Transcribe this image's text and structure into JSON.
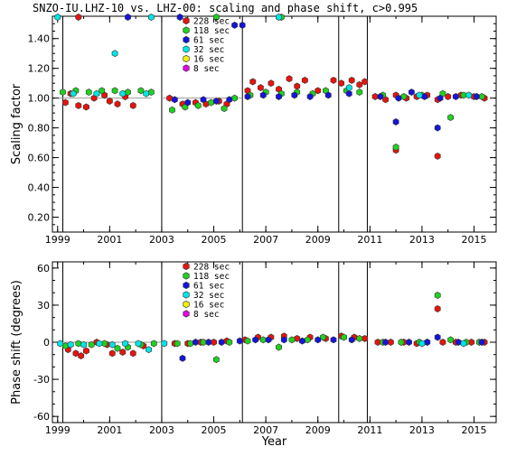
{
  "title": "SNZO-IU.LHZ-10 vs. LHZ-00: scaling and phase shift, c>0.995",
  "colors": {
    "228 sec": "#e8140c",
    "118 sec": "#1ed21e",
    "61 sec": "#1414dc",
    "32 sec": "#00e6e6",
    "16 sec": "#f0f000",
    "8 sec": "#e600e6"
  },
  "chart_data": [
    {
      "type": "scatter",
      "panel": "top",
      "xlabel": "",
      "ylabel": "Scaling factor",
      "xlim": [
        1998.8,
        2015.85
      ],
      "ylim": [
        0.1,
        1.55
      ],
      "xticks": [
        "1999",
        "2001",
        "2003",
        "2005",
        "2007",
        "2009",
        "2011",
        "2013",
        "2015"
      ],
      "yticks": [
        "0.20",
        "0.40",
        "0.60",
        "0.80",
        "1.00",
        "1.20",
        "1.40"
      ],
      "event_lines": [
        1999.2,
        2003.0,
        2006.1,
        2009.8,
        2010.9
      ],
      "legend": [
        "228 sec",
        "118 sec",
        "61 sec",
        "32 sec",
        "16 sec",
        "8 sec"
      ],
      "series": [
        {
          "name": "228 sec",
          "points": [
            [
              1999.3,
              0.97
            ],
            [
              1999.5,
              1.03
            ],
            [
              1999.8,
              0.95
            ],
            [
              2000.1,
              0.94
            ],
            [
              2000.4,
              1.0
            ],
            [
              2000.8,
              1.02
            ],
            [
              2001.0,
              0.98
            ],
            [
              2001.3,
              0.96
            ],
            [
              2001.6,
              1.01
            ],
            [
              2001.9,
              0.95
            ],
            [
              1999.8,
              1.55
            ],
            [
              2003.3,
              1.0
            ],
            [
              2003.8,
              0.96
            ],
            [
              2004.3,
              0.97
            ],
            [
              2004.7,
              0.96
            ],
            [
              2005.2,
              0.98
            ],
            [
              2005.5,
              0.96
            ],
            [
              2006.3,
              1.05
            ],
            [
              2006.5,
              1.11
            ],
            [
              2006.8,
              1.07
            ],
            [
              2007.2,
              1.1
            ],
            [
              2007.5,
              1.06
            ],
            [
              2007.9,
              1.13
            ],
            [
              2008.2,
              1.08
            ],
            [
              2008.5,
              1.12
            ],
            [
              2009.0,
              1.05
            ],
            [
              2009.6,
              1.12
            ],
            [
              2009.9,
              1.1
            ],
            [
              2010.3,
              1.12
            ],
            [
              2010.6,
              1.09
            ],
            [
              2010.8,
              1.11
            ],
            [
              2011.2,
              1.01
            ],
            [
              2011.6,
              0.99
            ],
            [
              2012.0,
              1.02
            ],
            [
              2012.4,
              1.0
            ],
            [
              2012.8,
              1.01
            ],
            [
              2013.2,
              1.02
            ],
            [
              2013.6,
              0.99
            ],
            [
              2014.0,
              1.01
            ],
            [
              2014.5,
              1.02
            ],
            [
              2015.0,
              1.01
            ],
            [
              2015.4,
              1.0
            ],
            [
              2012.0,
              0.65
            ],
            [
              2013.6,
              0.61
            ]
          ]
        },
        {
          "name": "118 sec",
          "points": [
            [
              1999.2,
              1.04
            ],
            [
              1999.7,
              1.05
            ],
            [
              2000.2,
              1.04
            ],
            [
              2000.7,
              1.05
            ],
            [
              2001.2,
              1.05
            ],
            [
              2001.7,
              1.04
            ],
            [
              2002.2,
              1.05
            ],
            [
              2002.6,
              1.04
            ],
            [
              2003.4,
              0.92
            ],
            [
              2003.9,
              0.94
            ],
            [
              2004.4,
              0.95
            ],
            [
              2004.9,
              0.97
            ],
            [
              2005.4,
              0.93
            ],
            [
              2005.8,
              1.0
            ],
            [
              2006.4,
              1.02
            ],
            [
              2007.0,
              1.04
            ],
            [
              2007.6,
              1.03
            ],
            [
              2008.2,
              1.04
            ],
            [
              2008.8,
              1.03
            ],
            [
              2009.3,
              1.05
            ],
            [
              2010.1,
              1.05
            ],
            [
              2010.6,
              1.04
            ],
            [
              2011.5,
              1.02
            ],
            [
              2012.3,
              1.01
            ],
            [
              2013.0,
              1.02
            ],
            [
              2013.8,
              1.03
            ],
            [
              2014.6,
              1.02
            ],
            [
              2015.3,
              1.01
            ],
            [
              2012.0,
              0.67
            ],
            [
              2014.1,
              0.87
            ],
            [
              2005.1,
              1.55
            ],
            [
              2007.6,
              1.55
            ]
          ]
        },
        {
          "name": "61 sec",
          "points": [
            [
              2003.5,
              0.99
            ],
            [
              2004.0,
              0.97
            ],
            [
              2004.6,
              0.99
            ],
            [
              2005.1,
              0.98
            ],
            [
              2005.6,
              0.99
            ],
            [
              2006.3,
              1.01
            ],
            [
              2006.9,
              1.02
            ],
            [
              2007.5,
              1.01
            ],
            [
              2008.1,
              1.02
            ],
            [
              2008.7,
              1.01
            ],
            [
              2009.4,
              1.02
            ],
            [
              2010.2,
              1.03
            ],
            [
              2011.4,
              1.01
            ],
            [
              2012.1,
              1.0
            ],
            [
              2012.6,
              1.04
            ],
            [
              2013.1,
              1.01
            ],
            [
              2013.7,
              1.0
            ],
            [
              2014.3,
              1.01
            ],
            [
              2015.1,
              1.01
            ],
            [
              2012.0,
              0.84
            ],
            [
              2013.6,
              0.8
            ],
            [
              2001.7,
              1.55
            ],
            [
              2003.7,
              1.55
            ],
            [
              2005.8,
              1.49
            ],
            [
              2006.1,
              1.49
            ]
          ]
        },
        {
          "name": "32 sec",
          "points": [
            [
              1999.0,
              1.55
            ],
            [
              2001.2,
              1.3
            ],
            [
              2002.6,
              1.55
            ],
            [
              2007.5,
              1.55
            ],
            [
              2010.2,
              1.07
            ],
            [
              1999.6,
              1.03
            ],
            [
              2000.5,
              1.03
            ],
            [
              2001.5,
              1.03
            ],
            [
              2002.4,
              1.03
            ],
            [
              2012.9,
              1.02
            ],
            [
              2014.8,
              1.02
            ]
          ]
        },
        {
          "name": "16 sec",
          "points": []
        },
        {
          "name": "8 sec",
          "points": []
        }
      ]
    },
    {
      "type": "scatter",
      "panel": "bottom",
      "xlabel": "Year",
      "ylabel": "Phase shift (degrees)",
      "xlim": [
        1998.8,
        2015.85
      ],
      "ylim": [
        -65,
        65
      ],
      "xticks": [
        "1999",
        "2001",
        "2003",
        "2005",
        "2007",
        "2009",
        "2011",
        "2013",
        "2015"
      ],
      "yticks": [
        "60",
        "30",
        "0",
        "-30",
        "-60"
      ],
      "event_lines": [
        1999.2,
        2003.0,
        2006.1,
        2009.8,
        2010.9
      ],
      "legend": [
        "228 sec",
        "118 sec",
        "61 sec",
        "32 sec",
        "16 sec",
        "8 sec"
      ],
      "series": [
        {
          "name": "228 sec",
          "points": [
            [
              1999.4,
              -6
            ],
            [
              1999.7,
              -9
            ],
            [
              1999.9,
              -11
            ],
            [
              2000.1,
              -7
            ],
            [
              2000.5,
              0
            ],
            [
              2000.9,
              -2
            ],
            [
              2001.1,
              -9
            ],
            [
              2001.5,
              -8
            ],
            [
              2001.9,
              -9
            ],
            [
              2002.3,
              -3
            ],
            [
              2003.5,
              -1
            ],
            [
              2004.0,
              -1
            ],
            [
              2004.5,
              0
            ],
            [
              2005.0,
              0
            ],
            [
              2005.5,
              1
            ],
            [
              2006.2,
              2
            ],
            [
              2006.7,
              4
            ],
            [
              2007.2,
              4
            ],
            [
              2007.7,
              5
            ],
            [
              2008.2,
              3
            ],
            [
              2008.7,
              4
            ],
            [
              2009.3,
              3
            ],
            [
              2009.9,
              5
            ],
            [
              2010.4,
              4
            ],
            [
              2010.8,
              3
            ],
            [
              2011.3,
              0
            ],
            [
              2011.8,
              0
            ],
            [
              2012.3,
              0
            ],
            [
              2012.8,
              -1
            ],
            [
              2013.2,
              0
            ],
            [
              2013.8,
              0
            ],
            [
              2014.3,
              0
            ],
            [
              2014.9,
              0
            ],
            [
              2015.4,
              0
            ],
            [
              2013.6,
              27
            ]
          ]
        },
        {
          "name": "118 sec",
          "points": [
            [
              1999.3,
              -3
            ],
            [
              1999.8,
              -1
            ],
            [
              2000.3,
              -2
            ],
            [
              2000.8,
              -1
            ],
            [
              2001.3,
              -5
            ],
            [
              2001.7,
              -4
            ],
            [
              2002.2,
              -2
            ],
            [
              2002.7,
              -1
            ],
            [
              2003.6,
              -1
            ],
            [
              2004.1,
              -1
            ],
            [
              2004.6,
              0
            ],
            [
              2005.1,
              -14
            ],
            [
              2005.6,
              0
            ],
            [
              2006.3,
              1
            ],
            [
              2006.9,
              2
            ],
            [
              2007.5,
              -4
            ],
            [
              2008.0,
              2
            ],
            [
              2008.6,
              2
            ],
            [
              2009.2,
              4
            ],
            [
              2010.0,
              4
            ],
            [
              2010.6,
              3
            ],
            [
              2011.5,
              0
            ],
            [
              2012.2,
              0
            ],
            [
              2012.9,
              0
            ],
            [
              2013.6,
              38
            ],
            [
              2014.1,
              2
            ],
            [
              2014.7,
              0
            ],
            [
              2015.2,
              0
            ]
          ]
        },
        {
          "name": "61 sec",
          "points": [
            [
              2003.8,
              -13
            ],
            [
              2004.3,
              0
            ],
            [
              2004.8,
              0
            ],
            [
              2005.3,
              0
            ],
            [
              2006.0,
              1
            ],
            [
              2006.6,
              2
            ],
            [
              2007.1,
              2
            ],
            [
              2007.7,
              2
            ],
            [
              2008.4,
              1
            ],
            [
              2009.0,
              2
            ],
            [
              2009.6,
              2
            ],
            [
              2010.3,
              2
            ],
            [
              2011.6,
              0
            ],
            [
              2012.5,
              0
            ],
            [
              2013.2,
              0
            ],
            [
              2013.6,
              4
            ],
            [
              2014.4,
              0
            ],
            [
              2015.3,
              0
            ]
          ]
        },
        {
          "name": "32 sec",
          "points": [
            [
              1999.1,
              -1
            ],
            [
              1999.5,
              -2
            ],
            [
              2000.0,
              -2
            ],
            [
              2000.6,
              -1
            ],
            [
              2001.1,
              -2
            ],
            [
              2001.6,
              -1
            ],
            [
              2002.1,
              -1
            ],
            [
              2002.5,
              -6
            ],
            [
              2003.1,
              -1
            ],
            [
              2013.0,
              -1
            ],
            [
              2014.6,
              -1
            ]
          ]
        },
        {
          "name": "16 sec",
          "points": []
        },
        {
          "name": "8 sec",
          "points": []
        }
      ]
    }
  ]
}
